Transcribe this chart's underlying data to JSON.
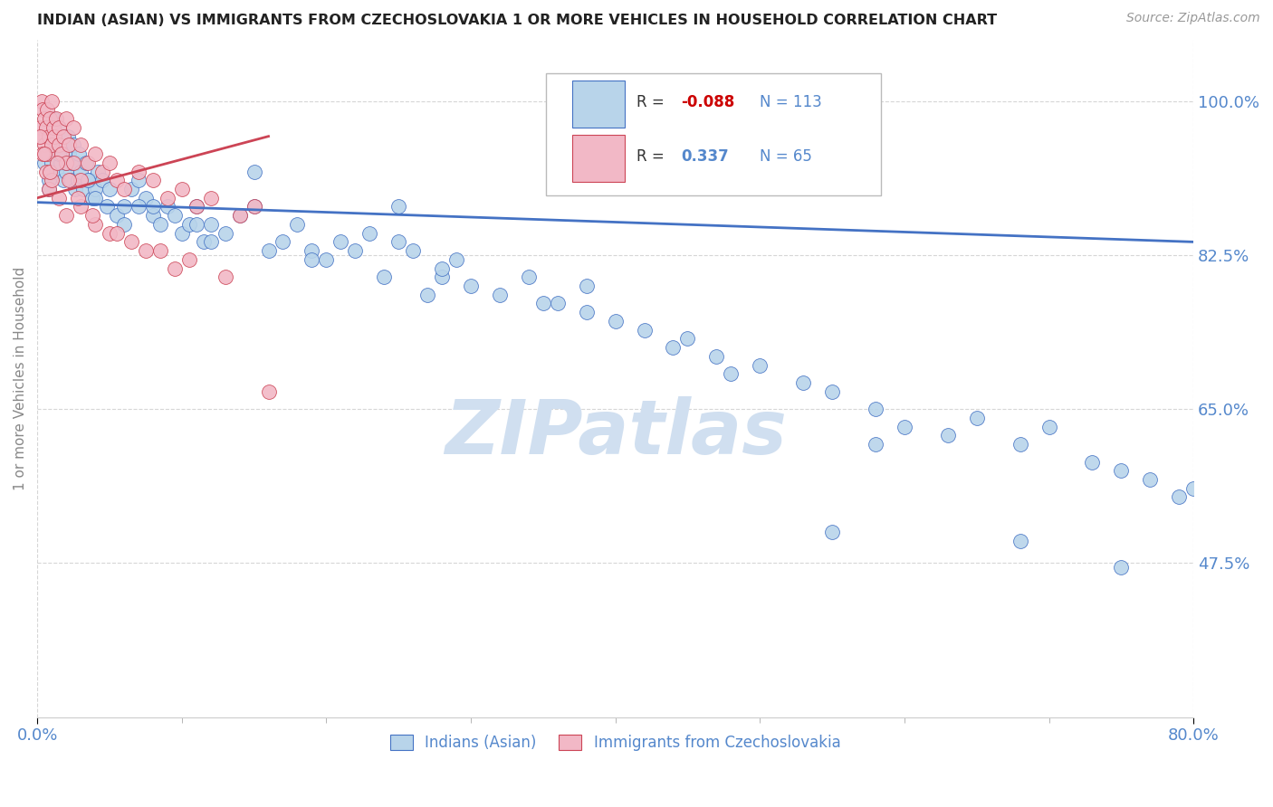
{
  "title": "INDIAN (ASIAN) VS IMMIGRANTS FROM CZECHOSLOVAKIA 1 OR MORE VEHICLES IN HOUSEHOLD CORRELATION CHART",
  "source": "Source: ZipAtlas.com",
  "ylabel": "1 or more Vehicles in Household",
  "yticks": [
    47.5,
    65.0,
    82.5,
    100.0
  ],
  "ytick_labels": [
    "47.5%",
    "65.0%",
    "82.5%",
    "100.0%"
  ],
  "xmin": 0.0,
  "xmax": 80.0,
  "ymin": 30.0,
  "ymax": 107.0,
  "legend": {
    "blue_label": "Indians (Asian)",
    "pink_label": "Immigrants from Czechoslovakia",
    "blue_R": -0.088,
    "blue_N": 113,
    "pink_R": 0.337,
    "pink_N": 65
  },
  "blue_color": "#b8d4ea",
  "pink_color": "#f2b8c6",
  "trend_blue": "#4472c4",
  "trend_pink": "#cc4455",
  "watermark": "ZIPatlas",
  "watermark_color": "#d0dff0",
  "title_color": "#222222",
  "axis_label_color": "#5588cc",
  "grid_color": "#cccccc",
  "blue_x": [
    0.5,
    0.6,
    0.7,
    0.8,
    0.9,
    1.0,
    1.0,
    1.1,
    1.2,
    1.3,
    1.4,
    1.5,
    1.5,
    1.6,
    1.7,
    1.8,
    1.9,
    2.0,
    2.0,
    2.1,
    2.2,
    2.3,
    2.4,
    2.5,
    2.6,
    2.7,
    2.8,
    2.9,
    3.0,
    3.2,
    3.4,
    3.6,
    3.8,
    4.0,
    4.2,
    4.5,
    4.8,
    5.0,
    5.5,
    6.0,
    6.5,
    7.0,
    7.5,
    8.0,
    8.5,
    9.0,
    9.5,
    10.0,
    10.5,
    11.0,
    11.5,
    12.0,
    13.0,
    14.0,
    15.0,
    16.0,
    17.0,
    18.0,
    19.0,
    20.0,
    21.0,
    22.0,
    23.0,
    24.0,
    25.0,
    26.0,
    27.0,
    28.0,
    29.0,
    30.0,
    32.0,
    34.0,
    36.0,
    38.0,
    40.0,
    42.0,
    44.0,
    47.0,
    50.0,
    53.0,
    55.0,
    58.0,
    60.0,
    63.0,
    65.0,
    68.0,
    70.0,
    73.0,
    75.0,
    77.0,
    79.0,
    80.0,
    55.0,
    45.0,
    35.0,
    25.0,
    15.0,
    8.0,
    4.0,
    2.0,
    1.5,
    0.8,
    6.0,
    12.0,
    19.0,
    28.0,
    38.0,
    48.0,
    58.0,
    68.0,
    75.0,
    3.5,
    7.0,
    11.0
  ],
  "blue_y": [
    93.0,
    94.0,
    97.0,
    91.0,
    96.0,
    95.0,
    93.0,
    98.0,
    97.0,
    92.0,
    95.0,
    94.0,
    97.0,
    93.0,
    96.0,
    91.0,
    94.0,
    95.0,
    92.0,
    96.0,
    94.0,
    91.0,
    93.0,
    95.0,
    90.0,
    93.0,
    91.0,
    94.0,
    92.0,
    90.0,
    93.0,
    91.0,
    89.0,
    90.0,
    92.0,
    91.0,
    88.0,
    90.0,
    87.0,
    88.0,
    90.0,
    91.0,
    89.0,
    87.0,
    86.0,
    88.0,
    87.0,
    85.0,
    86.0,
    88.0,
    84.0,
    86.0,
    85.0,
    87.0,
    88.0,
    83.0,
    84.0,
    86.0,
    83.0,
    82.0,
    84.0,
    83.0,
    85.0,
    80.0,
    84.0,
    83.0,
    78.0,
    80.0,
    82.0,
    79.0,
    78.0,
    80.0,
    77.0,
    76.0,
    75.0,
    74.0,
    72.0,
    71.0,
    70.0,
    68.0,
    67.0,
    65.0,
    63.0,
    62.0,
    64.0,
    61.0,
    63.0,
    59.0,
    58.0,
    57.0,
    55.0,
    56.0,
    51.0,
    73.0,
    77.0,
    88.0,
    92.0,
    88.0,
    89.0,
    93.0,
    94.0,
    90.0,
    86.0,
    84.0,
    82.0,
    81.0,
    79.0,
    69.0,
    61.0,
    50.0,
    47.0,
    91.0,
    88.0,
    86.0
  ],
  "pink_x": [
    0.2,
    0.3,
    0.3,
    0.4,
    0.5,
    0.5,
    0.6,
    0.7,
    0.7,
    0.8,
    0.9,
    1.0,
    1.0,
    1.1,
    1.2,
    1.3,
    1.5,
    1.5,
    1.7,
    1.8,
    2.0,
    2.0,
    2.2,
    2.5,
    2.5,
    3.0,
    3.0,
    3.5,
    4.0,
    4.5,
    5.0,
    5.5,
    6.0,
    7.0,
    8.0,
    9.0,
    10.0,
    11.0,
    12.0,
    14.0,
    15.0,
    0.4,
    0.6,
    0.8,
    1.0,
    1.5,
    2.0,
    3.0,
    4.0,
    5.0,
    6.5,
    8.5,
    10.5,
    13.0,
    16.0,
    0.2,
    0.5,
    0.9,
    1.4,
    2.2,
    2.8,
    3.8,
    5.5,
    7.5,
    9.5
  ],
  "pink_y": [
    97.0,
    100.0,
    96.0,
    99.0,
    98.0,
    95.0,
    97.0,
    99.0,
    94.0,
    96.0,
    98.0,
    95.0,
    100.0,
    97.0,
    96.0,
    98.0,
    95.0,
    97.0,
    94.0,
    96.0,
    98.0,
    93.0,
    95.0,
    97.0,
    93.0,
    95.0,
    91.0,
    93.0,
    94.0,
    92.0,
    93.0,
    91.0,
    90.0,
    92.0,
    91.0,
    89.0,
    90.0,
    88.0,
    89.0,
    87.0,
    88.0,
    94.0,
    92.0,
    90.0,
    91.0,
    89.0,
    87.0,
    88.0,
    86.0,
    85.0,
    84.0,
    83.0,
    82.0,
    80.0,
    67.0,
    96.0,
    94.0,
    92.0,
    93.0,
    91.0,
    89.0,
    87.0,
    85.0,
    83.0,
    81.0
  ],
  "blue_trend_x": [
    0,
    80
  ],
  "blue_trend_y": [
    88.5,
    84.0
  ],
  "pink_trend_x": [
    0,
    16
  ],
  "pink_trend_y": [
    89.0,
    96.0
  ]
}
